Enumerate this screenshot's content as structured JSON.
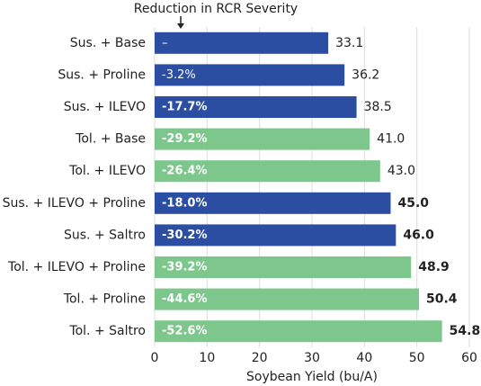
{
  "chart_data": {
    "type": "hbar",
    "annotation": "Reduction in RCR Severity",
    "xlabel": "Soybean Yield (bu/A)",
    "categories": [
      "Sus. + Base",
      "Sus. + Proline",
      "Sus. + ILEVO",
      "Tol. + Base",
      "Tol. + ILEVO",
      "Sus. + ILEVO + Proline",
      "Sus. + Saltro",
      "Tol. + ILEVO + Proline",
      "Tol. + Proline",
      "Tol. + Saltro"
    ],
    "values": [
      33.1,
      36.2,
      38.5,
      41.0,
      43.0,
      45.0,
      46.0,
      48.9,
      50.4,
      54.8
    ],
    "value_labels": [
      "33.1",
      "36.2",
      "38.5",
      "41.0",
      "43.0",
      "45.0",
      "46.0",
      "48.9",
      "50.4",
      "54.8"
    ],
    "value_label_bold": [
      false,
      false,
      false,
      false,
      false,
      true,
      true,
      true,
      true,
      true
    ],
    "reductions": [
      "–",
      "-3.2%",
      "-17.7%",
      "-29.2%",
      "-26.4%",
      "-18.0%",
      "-30.2%",
      "-39.2%",
      "-44.6%",
      "-52.6%"
    ],
    "reduction_bold": [
      false,
      false,
      true,
      true,
      true,
      true,
      true,
      true,
      true,
      true
    ],
    "colors": [
      "#2b4ea2",
      "#2b4ea2",
      "#2b4ea2",
      "#7dc68c",
      "#7dc68c",
      "#2b4ea2",
      "#2b4ea2",
      "#7dc68c",
      "#7dc68c",
      "#7dc68c"
    ],
    "xlim": [
      0,
      60
    ],
    "xticks": [
      0,
      10,
      20,
      30,
      40,
      50,
      60
    ],
    "grid": true
  }
}
